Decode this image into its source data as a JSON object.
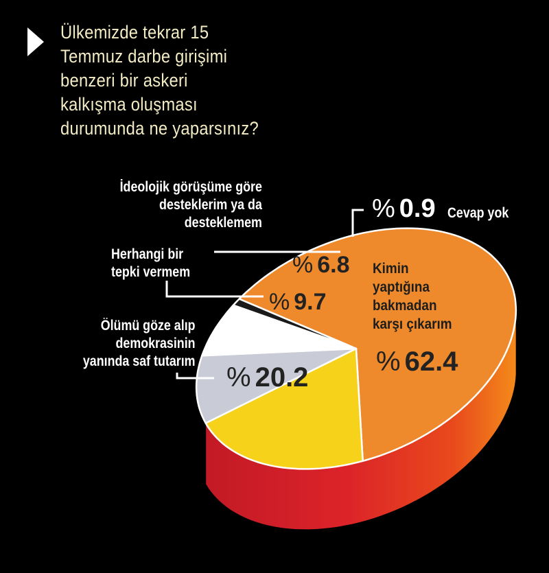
{
  "title_lines": [
    "Ülkemizde tekrar 15",
    "Temmuz darbe girişimi",
    "benzeri bir askeri",
    "kalkışma oluşması",
    "durumunda ne yaparsınız?"
  ],
  "percent_symbol": "%",
  "colors": {
    "background": "#000000",
    "title": "#f3ecc4",
    "orange": "#ee8a2c",
    "yellow": "#f7d21a",
    "grey": "#c9cbd6",
    "white": "#ffffff",
    "black": "#1a1a1a",
    "side_red": "#d8222a",
    "side_orange": "#f07a18"
  },
  "chart_data": {
    "type": "pie",
    "title": "Ülkemizde tekrar 15 Temmuz darbe girişimi benzeri bir askeri kalkışma oluşması durumunda ne yaparsınız?",
    "unit": "%",
    "slices": [
      {
        "label_lines": [
          "Kimin",
          "yaptığına",
          "bakmadan",
          "karşı çıkarım"
        ],
        "label": "Kimin yaptığına bakmadan karşı çıkarım",
        "value": 62.4,
        "value_text": "62.4",
        "color": "#ee8a2c"
      },
      {
        "label_lines": [
          "Ölümü göze alıp",
          "demokrasinin",
          "yanında saf tutarım"
        ],
        "label": "Ölümü göze alıp demokrasinin yanında saf tutarım",
        "value": 20.2,
        "value_text": "20.2",
        "color": "#f7d21a"
      },
      {
        "label_lines": [
          "Herhangi bir",
          "tepki vermem"
        ],
        "label": "Herhangi bir tepki vermem",
        "value": 9.7,
        "value_text": "9.7",
        "color": "#c9cbd6"
      },
      {
        "label_lines": [
          "İdeolojik görüşüme göre",
          "desteklerim ya da",
          "desteklemem"
        ],
        "label": "İdeolojik görüşüme göre desteklerim ya da desteklemem",
        "value": 6.8,
        "value_text": "6.8",
        "color": "#ffffff"
      },
      {
        "label_lines": [
          "Cevap yok"
        ],
        "label": "Cevap yok",
        "value": 0.9,
        "value_text": "0.9",
        "color": "#1a1a1a"
      }
    ]
  }
}
